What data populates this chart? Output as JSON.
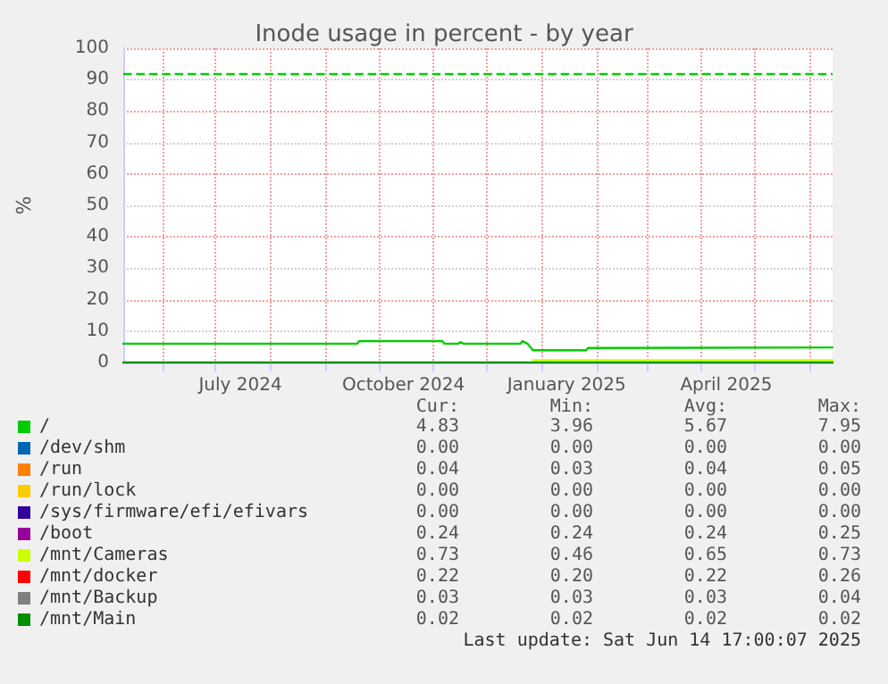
{
  "chart_data": {
    "type": "line",
    "title": "Inode usage in percent - by year",
    "ylabel": "%",
    "xlim": [
      "2024-05-10",
      "2025-06-14"
    ],
    "xticks": [
      {
        "value": "2024-06-01",
        "label": null
      },
      {
        "value": "2024-07-01",
        "label": null
      },
      {
        "value": "2024-07-15",
        "label": "July 2024"
      },
      {
        "value": "2024-08-01",
        "label": null
      },
      {
        "value": "2024-09-01",
        "label": null
      },
      {
        "value": "2024-10-01",
        "label": null
      },
      {
        "value": "2024-10-15",
        "label": "October 2024"
      },
      {
        "value": "2024-11-01",
        "label": null
      },
      {
        "value": "2024-12-01",
        "label": null
      },
      {
        "value": "2025-01-01",
        "label": null
      },
      {
        "value": "2025-01-15",
        "label": "January 2025"
      },
      {
        "value": "2025-02-01",
        "label": null
      },
      {
        "value": "2025-03-01",
        "label": null
      },
      {
        "value": "2025-04-01",
        "label": null
      },
      {
        "value": "2025-04-15",
        "label": "April 2025"
      },
      {
        "value": "2025-05-01",
        "label": null
      },
      {
        "value": "2025-06-01",
        "label": null
      }
    ],
    "ylim": [
      0,
      100
    ],
    "yticks": [
      0,
      10,
      20,
      30,
      40,
      50,
      60,
      70,
      80,
      90,
      100
    ],
    "grid": true,
    "legend": "bottom",
    "marker": "none",
    "line_style": "solid",
    "ref_lines": [
      {
        "axis": "y",
        "value": 92,
        "label": null,
        "color": "#00cc00",
        "line_style": "dashed"
      }
    ],
    "series": [
      {
        "name": "/",
        "color": "#00cc00",
        "x": [
          "2024-05-10",
          "2024-09-19",
          "2024-09-20",
          "2024-11-06",
          "2024-11-07",
          "2024-11-15",
          "2024-11-16",
          "2024-11-18",
          "2024-12-20",
          "2024-12-21",
          "2024-12-24",
          "2024-12-27",
          "2025-01-26",
          "2025-01-27",
          "2025-06-14"
        ],
        "values": [
          6.0,
          6.0,
          6.8,
          6.8,
          6.0,
          6.0,
          6.5,
          6.0,
          6.0,
          6.8,
          6.0,
          3.9,
          3.9,
          4.6,
          4.8
        ]
      },
      {
        "name": "/dev/shm",
        "color": "#0066b3"
      },
      {
        "name": "/run",
        "color": "#ff8000"
      },
      {
        "name": "/run/lock",
        "color": "#ffcc00"
      },
      {
        "name": "/sys/firmware/efi/efivars",
        "color": "#330099"
      },
      {
        "name": "/boot",
        "color": "#990099"
      },
      {
        "name": "/mnt/Cameras",
        "color": "#ccff00",
        "x": [
          "2024-12-27",
          "2025-06-14"
        ],
        "values": [
          0.7,
          0.7
        ]
      },
      {
        "name": "/mnt/docker",
        "color": "#ff0000"
      },
      {
        "name": "/mnt/Backup",
        "color": "#808080"
      },
      {
        "name": "/mnt/Main",
        "color": "#008f00",
        "x": [
          "2024-05-10",
          "2025-06-14"
        ],
        "values": [
          0.02,
          0.02
        ]
      }
    ],
    "annotations": [
      "Cur:",
      "Min:",
      "Avg:",
      "Max:",
      "4.83",
      "3.96",
      "5.67",
      "7.95",
      "0.00",
      "0.00",
      "0.00",
      "0.00",
      "0.04",
      "0.03",
      "0.04",
      "0.05",
      "0.00",
      "0.00",
      "0.00",
      "0.00",
      "0.00",
      "0.00",
      "0.00",
      "0.00",
      "0.24",
      "0.24",
      "0.24",
      "0.25",
      "0.73",
      "0.46",
      "0.65",
      "0.73",
      "0.22",
      "0.20",
      "0.22",
      "0.26",
      "0.03",
      "0.03",
      "0.03",
      "0.04",
      "0.02",
      "0.02",
      "0.02",
      "0.02",
      "Last update: Sat Jun 14 17:00:07 2025"
    ]
  }
}
